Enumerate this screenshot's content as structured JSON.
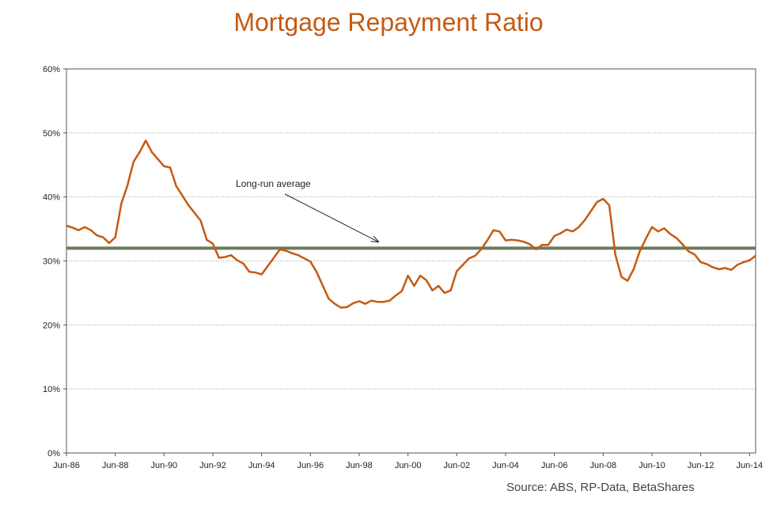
{
  "title": "Mortgage Repayment Ratio",
  "source": "Source: ABS, RP-Data, BetaShares",
  "colors": {
    "title": "#c55a11",
    "series": "#c55a11",
    "average": "#6b7b5e",
    "grid": "#999999"
  },
  "chart_data": {
    "type": "line",
    "title": "Mortgage Repayment Ratio",
    "xlabel": "",
    "ylabel": "",
    "ylim": [
      0,
      60
    ],
    "y_unit": "%",
    "y_ticks": [
      0,
      10,
      20,
      30,
      40,
      50,
      60
    ],
    "y_tick_labels": [
      "0%",
      "10%",
      "20%",
      "30%",
      "40%",
      "50%",
      "60%"
    ],
    "x_tick_labels": [
      "Jun-86",
      "Jun-88",
      "Jun-90",
      "Jun-92",
      "Jun-94",
      "Jun-96",
      "Jun-98",
      "Jun-00",
      "Jun-02",
      "Jun-04",
      "Jun-06",
      "Jun-08",
      "Jun-10",
      "Jun-12",
      "Jun-14"
    ],
    "x_range": [
      1986.5,
      2014.75
    ],
    "grid": "horizontal dotted",
    "series": [
      {
        "x": [
          1986.5,
          1986.75,
          1987.0,
          1987.25,
          1987.5,
          1987.75,
          1988.0,
          1988.25,
          1988.5,
          1988.75,
          1989.0,
          1989.25,
          1989.5,
          1989.75,
          1990.0,
          1990.25,
          1990.5,
          1990.75,
          1991.0,
          1991.25,
          1991.5,
          1991.75,
          1992.0,
          1992.25,
          1992.5,
          1992.75,
          1993.0,
          1993.25,
          1993.5,
          1993.75,
          1994.0,
          1994.25,
          1994.5,
          1994.75,
          1995.0,
          1995.25,
          1995.5,
          1995.75,
          1996.0,
          1996.25,
          1996.5,
          1996.75,
          1997.0,
          1997.25,
          1997.5,
          1997.75,
          1998.0,
          1998.25,
          1998.5,
          1998.75,
          1999.0,
          1999.25,
          1999.5,
          1999.75,
          2000.0,
          2000.25,
          2000.5,
          2000.75,
          2001.0,
          2001.25,
          2001.5,
          2001.75,
          2002.0,
          2002.25,
          2002.5,
          2002.75,
          2003.0,
          2003.25,
          2003.5,
          2003.75,
          2004.0,
          2004.25,
          2004.5,
          2004.75,
          2005.0,
          2005.25,
          2005.5,
          2005.75,
          2006.0,
          2006.25,
          2006.5,
          2006.75,
          2007.0,
          2007.25,
          2007.5,
          2007.75,
          2008.0,
          2008.25,
          2008.5,
          2008.75,
          2009.0,
          2009.25,
          2009.5,
          2009.75,
          2010.0,
          2010.25,
          2010.5,
          2010.75,
          2011.0,
          2011.25,
          2011.5,
          2011.75,
          2012.0,
          2012.25,
          2012.5,
          2012.75,
          2013.0,
          2013.25,
          2013.5,
          2013.75,
          2014.0,
          2014.25,
          2014.5,
          2014.75
        ],
        "y": [
          35.5,
          35.2,
          34.8,
          35.3,
          34.8,
          34.0,
          33.7,
          32.8,
          33.7,
          39.0,
          41.8,
          45.5,
          47.0,
          48.8,
          47.0,
          45.9,
          44.8,
          44.6,
          41.7,
          40.2,
          38.7,
          37.5,
          36.3,
          33.3,
          32.7,
          30.5,
          30.6,
          30.9,
          30.1,
          29.6,
          28.3,
          28.2,
          27.9,
          29.2,
          30.5,
          31.8,
          31.6,
          31.2,
          30.9,
          30.4,
          29.9,
          28.3,
          26.2,
          24.1,
          23.3,
          22.7,
          22.8,
          23.4,
          23.7,
          23.3,
          23.8,
          23.6,
          23.6,
          23.8,
          24.6,
          25.3,
          27.7,
          26.1,
          27.7,
          27.0,
          25.4,
          26.1,
          25.0,
          25.4,
          28.4,
          29.4,
          30.4,
          30.8,
          31.8,
          33.2,
          34.8,
          34.6,
          33.2,
          33.3,
          33.2,
          33.0,
          32.6,
          31.8,
          32.5,
          32.5,
          33.9,
          34.3,
          34.9,
          34.6,
          35.3,
          36.4,
          37.8,
          39.2,
          39.7,
          38.7,
          31.0,
          27.5,
          26.9,
          28.7,
          31.5,
          33.5,
          35.3,
          34.6,
          35.1,
          34.2,
          33.6,
          32.6,
          31.5,
          31.0,
          29.8,
          29.5,
          29.0,
          28.7,
          28.9,
          28.6,
          29.4,
          29.8,
          30.1,
          30.8
        ]
      }
    ],
    "reference_lines": [
      {
        "y": 32
      }
    ],
    "annotations": [
      {
        "text": "Long-run average",
        "points_to_y": 32
      }
    ]
  }
}
